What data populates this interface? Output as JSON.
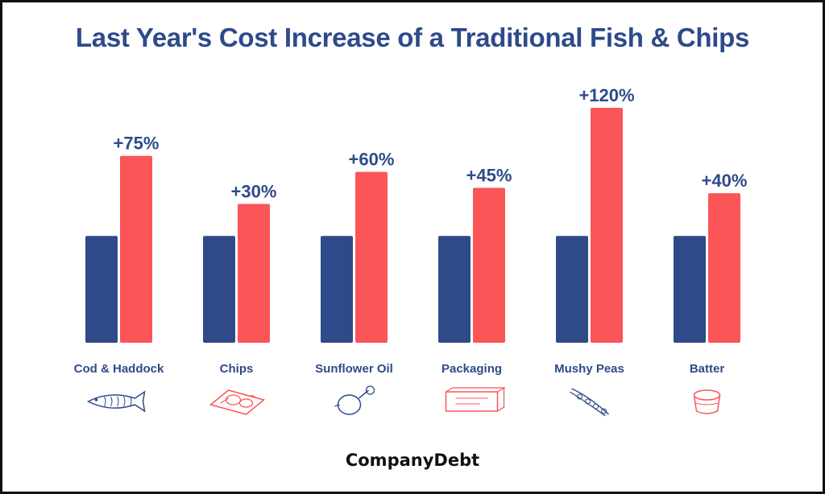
{
  "colors": {
    "baseline_bar": "#2e4a88",
    "increase_bar": "#fb5558",
    "text": "#2e4a8a",
    "brand": "#111111"
  },
  "brand": "CompanyDebt",
  "chart_data": {
    "type": "bar",
    "title": "Last Year's Cost Increase of a Traditional Fish & Chips",
    "xlabel": "",
    "ylabel": "",
    "categories": [
      "Cod & Haddock",
      "Chips",
      "Sunflower Oil",
      "Packaging",
      "Mushy Peas",
      "Batter"
    ],
    "icons": [
      "fish-icon",
      "chips-icon",
      "sunflower-oil-icon",
      "packaging-icon",
      "pea-pod-icon",
      "batter-pot-icon"
    ],
    "series": [
      {
        "values": [
          100,
          100,
          100,
          100,
          100,
          100
        ]
      },
      {
        "values": [
          175,
          130,
          160,
          145,
          220,
          140
        ]
      }
    ],
    "data_labels": [
      "+75%",
      "+30%",
      "+60%",
      "+45%",
      "+120%",
      "+40%"
    ],
    "ylim": [
      0,
      220
    ],
    "grid": false,
    "legend": "none"
  }
}
